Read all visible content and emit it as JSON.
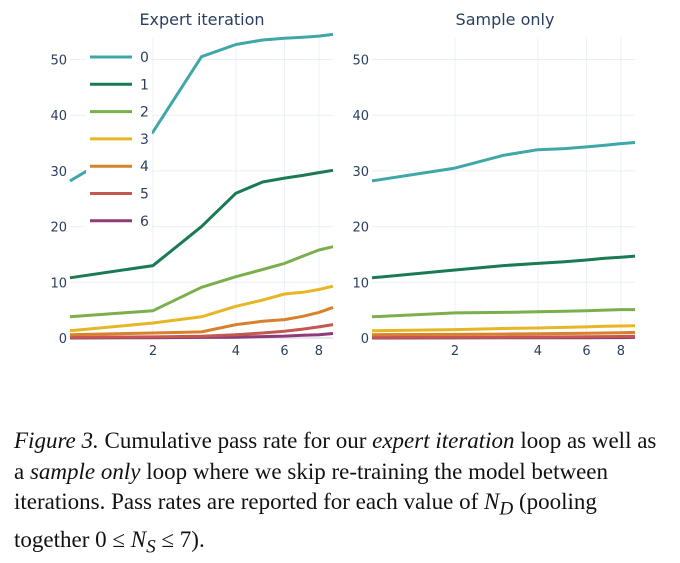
{
  "chart_data": [
    {
      "type": "line",
      "title": "Expert iteration",
      "x_scale": "log",
      "x": [
        1,
        2,
        3,
        4,
        5,
        6,
        7,
        8,
        9
      ],
      "x_ticks": [
        "2",
        "4",
        "6",
        "8"
      ],
      "y_ticks": [
        "0",
        "10",
        "20",
        "30",
        "40",
        "50"
      ],
      "ylim": [
        0,
        55
      ],
      "legend_position": "top-left",
      "series": [
        {
          "name": "0",
          "color": "#3fa7a7",
          "values": [
            28.2,
            37.0,
            50.5,
            52.7,
            53.5,
            53.8,
            54.0,
            54.2,
            54.5
          ]
        },
        {
          "name": "1",
          "color": "#1a7a52",
          "values": [
            10.8,
            13.0,
            20.0,
            26.0,
            28.0,
            28.7,
            29.2,
            29.7,
            30.1
          ]
        },
        {
          "name": "2",
          "color": "#7aaf4c",
          "values": [
            3.8,
            4.9,
            9.1,
            11.0,
            12.3,
            13.4,
            14.7,
            15.8,
            16.4
          ]
        },
        {
          "name": "3",
          "color": "#e6b626",
          "values": [
            1.3,
            2.7,
            3.8,
            5.7,
            6.8,
            7.9,
            8.2,
            8.7,
            9.3
          ]
        },
        {
          "name": "4",
          "color": "#d9802a",
          "values": [
            0.6,
            0.9,
            1.1,
            2.4,
            3.0,
            3.3,
            3.9,
            4.6,
            5.5
          ]
        },
        {
          "name": "5",
          "color": "#c4574f",
          "values": [
            0.1,
            0.2,
            0.3,
            0.6,
            0.9,
            1.2,
            1.6,
            2.0,
            2.4
          ]
        },
        {
          "name": "6",
          "color": "#8e3b7a",
          "values": [
            0.0,
            0.05,
            0.1,
            0.15,
            0.25,
            0.35,
            0.5,
            0.6,
            0.8
          ]
        }
      ]
    },
    {
      "type": "line",
      "title": "Sample only",
      "x_scale": "log",
      "x": [
        1,
        2,
        3,
        4,
        5,
        6,
        7,
        8,
        9
      ],
      "x_ticks": [
        "2",
        "4",
        "6",
        "8"
      ],
      "y_ticks": [
        "0",
        "10",
        "20",
        "30",
        "40",
        "50"
      ],
      "ylim": [
        0,
        55
      ],
      "series": [
        {
          "name": "0",
          "color": "#3fa7a7",
          "values": [
            28.2,
            30.5,
            32.8,
            33.8,
            34.0,
            34.3,
            34.6,
            34.9,
            35.1
          ]
        },
        {
          "name": "1",
          "color": "#1a7a52",
          "values": [
            10.8,
            12.2,
            13.0,
            13.4,
            13.7,
            14.0,
            14.3,
            14.5,
            14.7
          ]
        },
        {
          "name": "2",
          "color": "#7aaf4c",
          "values": [
            3.8,
            4.5,
            4.6,
            4.7,
            4.8,
            4.9,
            5.0,
            5.1,
            5.1
          ]
        },
        {
          "name": "3",
          "color": "#e6b626",
          "values": [
            1.3,
            1.5,
            1.7,
            1.8,
            1.9,
            2.0,
            2.1,
            2.15,
            2.2
          ]
        },
        {
          "name": "4",
          "color": "#d9802a",
          "values": [
            0.6,
            0.65,
            0.7,
            0.75,
            0.8,
            0.85,
            0.9,
            0.95,
            1.0
          ]
        },
        {
          "name": "5",
          "color": "#c4574f",
          "values": [
            0.1,
            0.12,
            0.15,
            0.18,
            0.2,
            0.22,
            0.25,
            0.27,
            0.3
          ]
        },
        {
          "name": "6",
          "color": "#8e3b7a",
          "values": [
            0.0,
            0.02,
            0.03,
            0.04,
            0.05,
            0.06,
            0.07,
            0.08,
            0.1
          ]
        }
      ]
    }
  ],
  "caption": {
    "label": "Figure 3.",
    "part1": " Cumulative pass rate for our ",
    "em1": "expert iteration",
    "part2": " loop as well as a ",
    "em2": "sample only",
    "part3": " loop where we skip re-training the model between iterations. Pass rates are reported for each value of ",
    "math1": "N",
    "math1_sub": "D",
    "part4": " (pooling together 0 ≤ ",
    "math2": "N",
    "math2_sub": "S",
    "part5": " ≤ 7)."
  }
}
